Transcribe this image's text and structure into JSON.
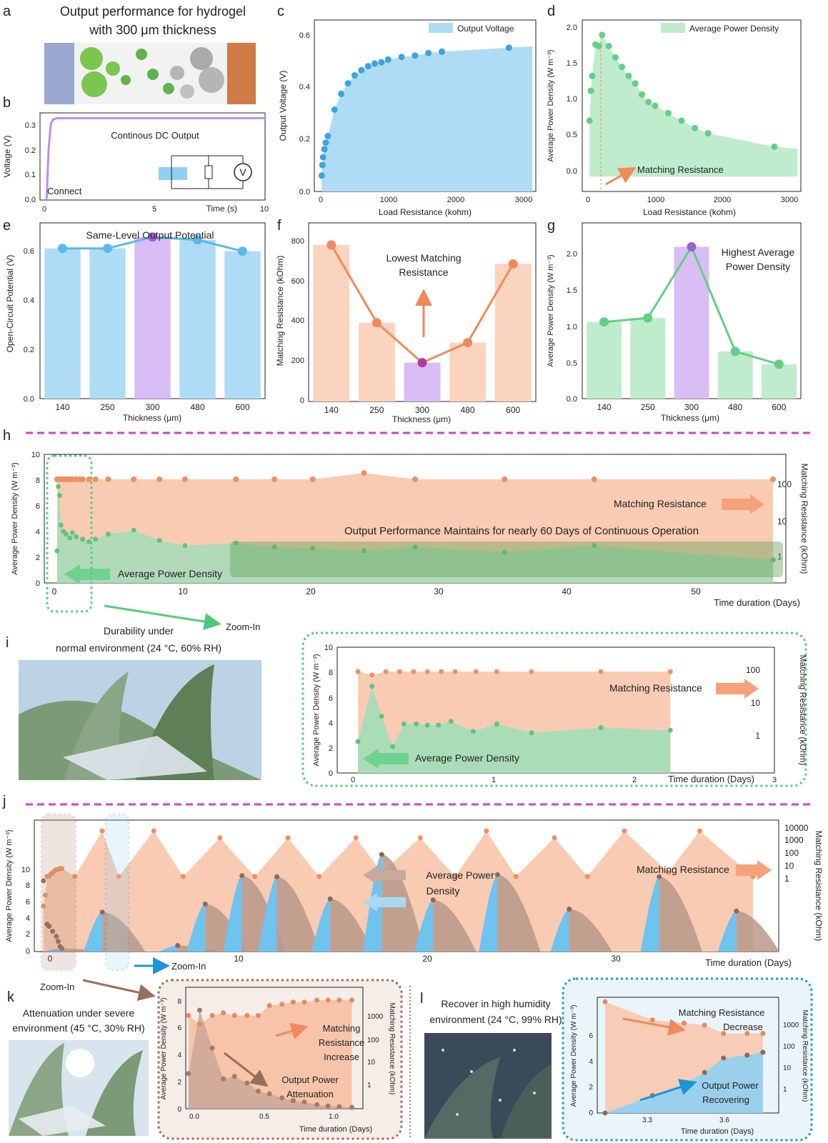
{
  "figure": {
    "panel_letters": [
      "a",
      "b",
      "c",
      "d",
      "e",
      "f",
      "g",
      "h",
      "i",
      "j",
      "k",
      "l"
    ],
    "colors": {
      "blue": "#8fd0f2",
      "green": "#8cd9a6",
      "orange": "#f5a27a",
      "purple": "#c9a2ee",
      "brown": "#b48a74",
      "magenta": "#cc44cc"
    }
  },
  "panel_a": {
    "title_line1": "Output performance for hydrogel",
    "title_line2": "with 300 μm thickness",
    "icon": "hydrogel-schematic-icon"
  },
  "panel_b": {
    "ylabel": "Voltage (V)",
    "xlabel": "Time (s)",
    "annotation": "Continous DC Output",
    "connect_label": "Connect",
    "ylim": [
      0,
      0.33
    ],
    "xlim": [
      -0.3,
      10
    ],
    "yticks": [
      "0.0",
      "0.1",
      "0.2",
      "0.3"
    ],
    "xticks": [
      "0",
      "5",
      "10"
    ],
    "circuit_icon": "circuit-voltmeter-icon"
  },
  "chart_data": [
    {
      "panel": "b",
      "type": "line",
      "x": [
        0,
        0.1,
        0.2,
        0.3,
        0.5,
        1,
        2,
        3,
        4,
        5,
        6,
        7,
        8,
        9,
        10
      ],
      "y": [
        0,
        0.2,
        0.29,
        0.305,
        0.31,
        0.31,
        0.31,
        0.31,
        0.31,
        0.31,
        0.31,
        0.31,
        0.31,
        0.31,
        0.31
      ],
      "xlim": [
        -0.3,
        10
      ],
      "ylim": [
        0,
        0.33
      ]
    },
    {
      "panel": "c",
      "type": "area",
      "series": [
        {
          "name": "Output Voltage"
        }
      ],
      "x": [
        10,
        20,
        30,
        50,
        70,
        100,
        200,
        300,
        400,
        500,
        600,
        700,
        800,
        900,
        1000,
        1200,
        1400,
        1600,
        1800,
        2800
      ],
      "y": [
        0.06,
        0.1,
        0.13,
        0.16,
        0.185,
        0.21,
        0.31,
        0.37,
        0.41,
        0.44,
        0.46,
        0.475,
        0.485,
        0.49,
        0.5,
        0.51,
        0.515,
        0.525,
        0.53,
        0.545
      ],
      "xlim": [
        -100,
        3200
      ],
      "ylim": [
        0,
        0.65
      ]
    },
    {
      "panel": "d",
      "type": "area",
      "series": [
        {
          "name": "Average Power Density"
        }
      ],
      "x": [
        10,
        30,
        50,
        100,
        150,
        200,
        300,
        400,
        500,
        600,
        700,
        800,
        900,
        1000,
        1200,
        1400,
        1600,
        1800,
        2800
      ],
      "y": [
        0.75,
        1.15,
        1.35,
        1.77,
        1.75,
        1.9,
        1.75,
        1.6,
        1.47,
        1.35,
        1.25,
        1.1,
        1.0,
        0.95,
        0.85,
        0.75,
        0.65,
        0.58,
        0.4
      ],
      "xlim": [
        -100,
        3200
      ],
      "ylim": [
        -0.2,
        2.1
      ]
    },
    {
      "panel": "e",
      "type": "bar",
      "categories": [
        "140",
        "250",
        "300",
        "480",
        "600"
      ],
      "values": [
        0.53,
        0.53,
        0.57,
        0.56,
        0.52
      ],
      "ylim": [
        0,
        0.62
      ]
    },
    {
      "panel": "f",
      "type": "bar",
      "categories": [
        "140",
        "250",
        "300",
        "480",
        "600"
      ],
      "values": [
        745,
        375,
        185,
        280,
        655
      ],
      "ylim": [
        0,
        850
      ]
    },
    {
      "panel": "g",
      "type": "bar",
      "categories": [
        "140",
        "250",
        "300",
        "480",
        "600"
      ],
      "values": [
        0.96,
        1.01,
        1.9,
        0.59,
        0.43
      ],
      "ylim": [
        0,
        2.2
      ]
    },
    {
      "panel": "h",
      "type": "area",
      "series": [
        {
          "name": "Matching Resistance",
          "x": [
            0,
            0.2,
            0.4,
            0.6,
            0.8,
            1,
            1.2,
            1.5,
            1.8,
            2,
            2.5,
            3,
            4,
            6,
            8,
            10,
            14,
            17,
            20,
            24,
            28,
            35,
            42,
            56
          ],
          "y": [
            200,
            200,
            200,
            200,
            200,
            200,
            200,
            200,
            200,
            200,
            200,
            200,
            200,
            200,
            200,
            200,
            200,
            200,
            200,
            300,
            200,
            200,
            200,
            200
          ]
        },
        {
          "name": "Average Power Density",
          "x": [
            0,
            0.1,
            0.2,
            0.3,
            0.5,
            0.7,
            1,
            1.2,
            1.5,
            2,
            2.5,
            3,
            4,
            6,
            8,
            10,
            14,
            17,
            20,
            24,
            28,
            35,
            42,
            56
          ],
          "y": [
            2.5,
            7.5,
            6.8,
            4.5,
            4,
            3.8,
            3.5,
            3.9,
            3.6,
            3.4,
            3.2,
            3.4,
            3.8,
            4.1,
            3.3,
            2.9,
            3.1,
            2.8,
            2.7,
            2.5,
            2.8,
            2.4,
            2.9,
            1.8
          ]
        }
      ],
      "xlim": [
        -1,
        57
      ],
      "ylim": [
        0,
        10
      ],
      "y2_range": [
        0.25,
        1000
      ]
    },
    {
      "panel": "i",
      "type": "area",
      "series": [
        {
          "name": "Matching Resistance",
          "x": [
            0,
            0.1,
            0.2,
            0.3,
            0.4,
            0.5,
            0.6,
            0.7,
            0.85,
            1,
            1.25,
            1.75,
            2.25
          ],
          "y": [
            200,
            160,
            200,
            200,
            200,
            200,
            200,
            200,
            200,
            200,
            200,
            200,
            200
          ]
        },
        {
          "name": "Average Power Density",
          "x": [
            0,
            0.1,
            0.17,
            0.25,
            0.33,
            0.42,
            0.5,
            0.58,
            0.67,
            0.83,
            1,
            1.25,
            1.75,
            2.25
          ],
          "y": [
            2.5,
            6.9,
            4.5,
            2.1,
            3.9,
            3.9,
            3.8,
            3.8,
            4.1,
            3.3,
            3.9,
            3.2,
            3.6,
            3.4
          ]
        }
      ],
      "xlim": [
        -0.15,
        3
      ],
      "ylim": [
        0,
        10
      ],
      "y2_range": [
        0.25,
        1000
      ]
    },
    {
      "panel": "j",
      "type": "area",
      "series": [
        {
          "name": "Matching Resistance",
          "x": [
            0,
            0.1,
            0.2,
            0.3,
            0.4,
            0.5,
            0.6,
            0.7,
            0.8,
            0.9,
            1,
            1.7,
            3.2,
            4.1,
            6,
            7.6,
            9.6,
            11.5,
            13.3,
            15,
            17,
            18.4,
            20.5,
            22.4,
            24.1,
            25.7,
            27.8,
            29.6,
            31.6,
            34,
            35.7,
            38.6
          ],
          "y": [
            10,
            30,
            200,
            200,
            250,
            300,
            350,
            400,
            400,
            450,
            450,
            200,
            20000,
            200,
            20000,
            200,
            10000,
            200,
            10000,
            200,
            10000,
            300,
            10000,
            200,
            20000,
            200,
            10000,
            200,
            20000,
            300,
            20000,
            200
          ]
        },
        {
          "name": "Average Power Density",
          "x": [
            0,
            0.2,
            0.3,
            0.5,
            0.7,
            0.8,
            0.9,
            1,
            3.2,
            7.3,
            8.8,
            10.8,
            12.7,
            15.6,
            18.4,
            21.2,
            24.7,
            28.6,
            33.5,
            37.7
          ],
          "y": [
            7,
            2.7,
            2.5,
            2,
            1.5,
            1,
            0.5,
            0.3,
            3.9,
            0.6,
            4.7,
            7.5,
            7.4,
            5.2,
            9.6,
            5.1,
            7.6,
            4.2,
            7.4,
            4
          ]
        }
      ],
      "xlim": [
        -0.5,
        40
      ],
      "ylim": [
        0,
        13
      ],
      "y2_range": [
        0.1,
        60000
      ]
    },
    {
      "panel": "k",
      "type": "area",
      "series": [
        {
          "name": "Matching Resistance",
          "x": [
            0,
            0.08,
            0.17,
            0.25,
            0.33,
            0.42,
            0.5,
            0.58,
            0.67,
            0.75,
            0.83,
            0.92,
            1.0,
            1.08,
            1.17
          ],
          "y": [
            200,
            100,
            200,
            250,
            200,
            200,
            200,
            450,
            500,
            600,
            600,
            700,
            700,
            700,
            700
          ]
        },
        {
          "name": "Average Power Density",
          "x": [
            0,
            0.08,
            0.17,
            0.25,
            0.33,
            0.42,
            0.5,
            0.58,
            0.67,
            0.75,
            0.83,
            0.92,
            1.0,
            1.08,
            1.17
          ],
          "y": [
            2.6,
            7.3,
            4.5,
            2.2,
            2.4,
            1.9,
            1.3,
            1.1,
            0.8,
            0.6,
            0.5,
            0.3,
            0.2,
            0.15,
            0.1
          ]
        }
      ],
      "xlim": [
        -0.02,
        1.25
      ],
      "ylim": [
        0,
        9
      ],
      "y2_range": [
        0.1,
        2000
      ]
    },
    {
      "panel": "l",
      "type": "area",
      "series": [
        {
          "name": "Matching Resistance",
          "x": [
            3.0,
            3.3,
            3.5,
            3.63,
            3.75,
            3.9,
            4.0
          ],
          "y": [
            2000,
            400,
            300,
            250,
            120,
            120,
            120
          ]
        },
        {
          "name": "Average Power Density",
          "x": [
            3.0,
            3.3,
            3.5,
            3.63,
            3.75,
            3.9,
            4.0
          ],
          "y": [
            0,
            1.2,
            2,
            2.8,
            3.8,
            4,
            4.2
          ]
        }
      ],
      "xlim": [
        2.95,
        4.1
      ],
      "ylim": [
        0,
        8
      ],
      "y2_range": [
        0.1,
        3000
      ]
    }
  ],
  "panel_c": {
    "ylabel": "Output Voltage (V)",
    "xlabel": "Load Resistance (kohm)",
    "legend": "Output Voltage",
    "yticks": [
      "0.0",
      "0.2",
      "0.4",
      "0.6"
    ],
    "xticks": [
      "0",
      "1000",
      "2000",
      "3000"
    ]
  },
  "panel_d": {
    "ylabel": "Average Power Density (W m⁻³)",
    "xlabel": "Load Resistance (kohm)",
    "legend": "Average Power Density",
    "annotation": "Matching Resistance",
    "yticks": [
      "0.0",
      "0.5",
      "1.0",
      "1.5",
      "2.0"
    ],
    "xticks": [
      "0",
      "1000",
      "2000",
      "3000"
    ]
  },
  "panel_e": {
    "ylabel": "Open-Circuit Potential (V)",
    "xlabel": "Thickness (μm)",
    "annotation": "Same-Level Output Potential",
    "yticks": [
      "0.0",
      "0.2",
      "0.4",
      "0.6"
    ]
  },
  "panel_f": {
    "ylabel": "Matching Resistance (kOhm)",
    "xlabel": "Thickness (μm)",
    "annotation_line1": "Lowest Matching",
    "annotation_line2": "Resistance",
    "yticks": [
      "0",
      "200",
      "400",
      "600",
      "800"
    ]
  },
  "panel_g": {
    "ylabel": "Average Power Density (W m⁻³)",
    "xlabel": "Thickness (μm)",
    "annotation_line1": "Highest Average",
    "annotation_line2": "Power Density",
    "yticks": [
      "0.0",
      "0.5",
      "1.0",
      "1.5",
      "2.0"
    ]
  },
  "panel_h": {
    "ylabel": "Average Power Density (W m⁻³)",
    "y2label": "Matching Resistance (kOhm)",
    "xlabel": "Time duration (Days)",
    "annotation": "Output Performance Maintains for nearly 60 Days of Continuous Operation",
    "label_resistance": "Matching Resistance",
    "label_power": "Average Power Density",
    "zoom_label": "Zoom-In",
    "yticks": [
      "0",
      "2",
      "4",
      "6",
      "8",
      "10"
    ],
    "y2ticks": [
      "1",
      "10",
      "100"
    ],
    "xticks": [
      "0",
      "10",
      "20",
      "30",
      "40",
      "50"
    ]
  },
  "panel_i": {
    "title_line1": "Durability under",
    "title_line2": "normal environment (24 °C, 60% RH)",
    "photo_icon": "leaf-device-photo-icon",
    "ylabel": "Average Power Density (W m⁻³)",
    "y2label": "Matching Resistance (kOhm)",
    "xlabel": "Time duration (Days)",
    "label_resistance": "Matching Resistance",
    "label_power": "Average Power Density",
    "yticks": [
      "0",
      "2",
      "4",
      "6",
      "8",
      "10"
    ],
    "y2ticks": [
      "1",
      "10",
      "100"
    ],
    "xticks": [
      "0",
      "1",
      "2",
      "3"
    ]
  },
  "panel_j": {
    "ylabel": "Average Power Density (W m⁻³)",
    "y2label": "Matching Resistance (kOhm)",
    "xlabel": "Time duration (Days)",
    "label_resistance": "Matching Resistance",
    "label_power_line1": "Average Power",
    "label_power_line2": "Density",
    "zoom_label": "Zoom-In",
    "yticks": [
      "0",
      "2",
      "4",
      "6",
      "8",
      "10"
    ],
    "y2ticks": [
      "1",
      "10",
      "100",
      "1000",
      "10000"
    ],
    "xticks": [
      "0",
      "10",
      "20",
      "30"
    ]
  },
  "panel_k": {
    "zoom_label": "Zoom-In",
    "title_line1": "Attenuation under severe",
    "title_line2": "environment (45 °C, 30% RH)",
    "photo_icon": "sun-leaf-photo-icon",
    "ylabel": "Average Power Density (W m⁻³)",
    "y2label": "Matching Resistance (kOhm)",
    "xlabel": "Time duration (Days)",
    "ann_res_1": "Matching",
    "ann_res_2": "Resistance",
    "ann_res_3": "Increase",
    "ann_pow_1": "Output Power",
    "ann_pow_2": "Attenuation",
    "yticks": [
      "0",
      "2",
      "4",
      "6",
      "8"
    ],
    "y2ticks": [
      "1",
      "10",
      "100",
      "1000"
    ],
    "xticks": [
      "0.0",
      "0.5",
      "1.0"
    ]
  },
  "panel_l": {
    "title_line1": "Recover in high humidity",
    "title_line2": "environment (24 °C, 99% RH)",
    "photo_icon": "rain-leaf-photo-icon",
    "ylabel": "Average Power Density (W m⁻³)",
    "y2label": "Matching Resistance (kOhm)",
    "xlabel": "Time duration (Days)",
    "ann_res_1": "Matching Resistance",
    "ann_res_2": "Decrease",
    "ann_pow_1": "Output Power",
    "ann_pow_2": "Recovering",
    "yticks": [
      "0",
      "2",
      "4",
      "6"
    ],
    "y2ticks": [
      "1",
      "10",
      "100",
      "1000"
    ],
    "xticks": [
      "3.3",
      "3.6"
    ]
  }
}
